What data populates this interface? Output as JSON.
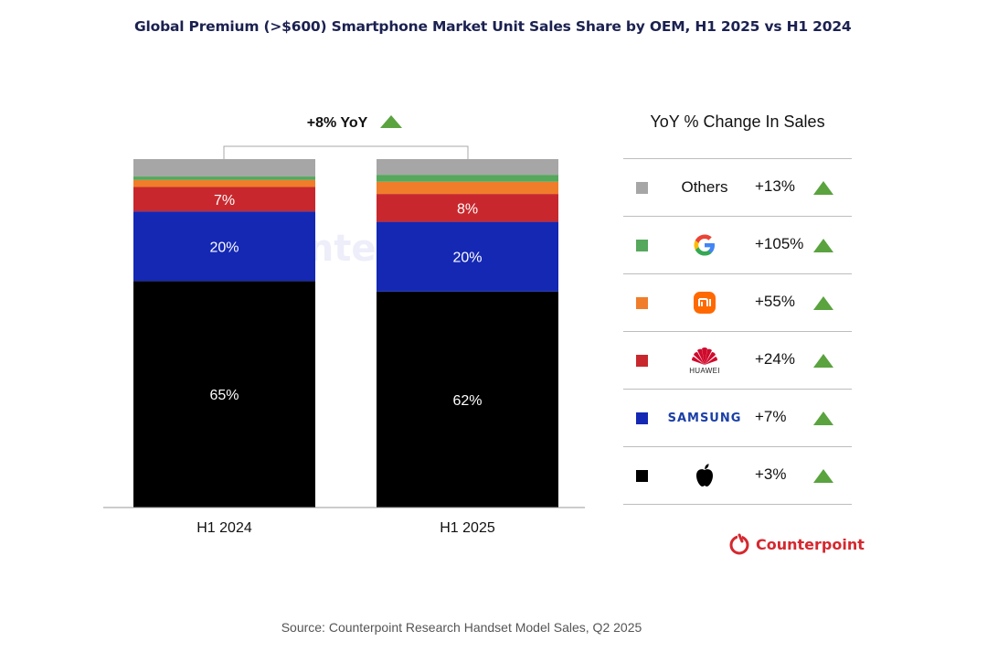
{
  "title": "Global Premium (>$600) Smartphone Market Unit Sales Share by OEM, H1 2025 vs H1 2024",
  "yoy_label": "+8% YoY",
  "watermark": "Counterpoint",
  "colors": {
    "apple": "#000000",
    "samsung": "#1428b4",
    "huawei": "#c8282d",
    "xiaomi": "#f07d2a",
    "google": "#56a85c",
    "others": "#a6a6a6",
    "up": "#5aa33f",
    "brand_red": "#d5282f"
  },
  "chart_data": {
    "type": "bar",
    "stacked": true,
    "title": "Global Premium (>$600) Smartphone Market Unit Sales Share by OEM, H1 2025 vs H1 2024",
    "categories": [
      "H1 2024",
      "H1 2025"
    ],
    "ylim": [
      0,
      100
    ],
    "xlabel": "",
    "ylabel": "",
    "series": [
      {
        "name": "Apple",
        "values": [
          65,
          62
        ],
        "labels": [
          "65%",
          "62%"
        ]
      },
      {
        "name": "Samsung",
        "values": [
          20,
          20
        ],
        "labels": [
          "20%",
          "20%"
        ]
      },
      {
        "name": "Huawei",
        "values": [
          7,
          8
        ],
        "labels": [
          "7%",
          "8%"
        ]
      },
      {
        "name": "Xiaomi",
        "values": [
          2,
          3.5
        ],
        "labels": [
          "",
          ""
        ]
      },
      {
        "name": "Google",
        "values": [
          1,
          2
        ],
        "labels": [
          "",
          ""
        ]
      },
      {
        "name": "Others",
        "values": [
          5,
          4.5
        ],
        "labels": [
          "",
          ""
        ]
      }
    ],
    "annotation": "+8% YoY"
  },
  "legend": {
    "title": "YoY % Change In Sales",
    "rows": [
      {
        "brand": "Others",
        "change": "+13%"
      },
      {
        "brand": "Google",
        "change": "+105%"
      },
      {
        "brand": "Xiaomi",
        "change": "+55%"
      },
      {
        "brand": "Huawei",
        "change": "+24%",
        "logo_text": "HUAWEI"
      },
      {
        "brand": "Samsung",
        "change": "+7%",
        "logo_text": "SAMSUNG"
      },
      {
        "brand": "Apple",
        "change": "+3%"
      }
    ]
  },
  "brand_logo_text": "Counterpoint",
  "source": "Source: Counterpoint Research Handset Model Sales, Q2 2025"
}
